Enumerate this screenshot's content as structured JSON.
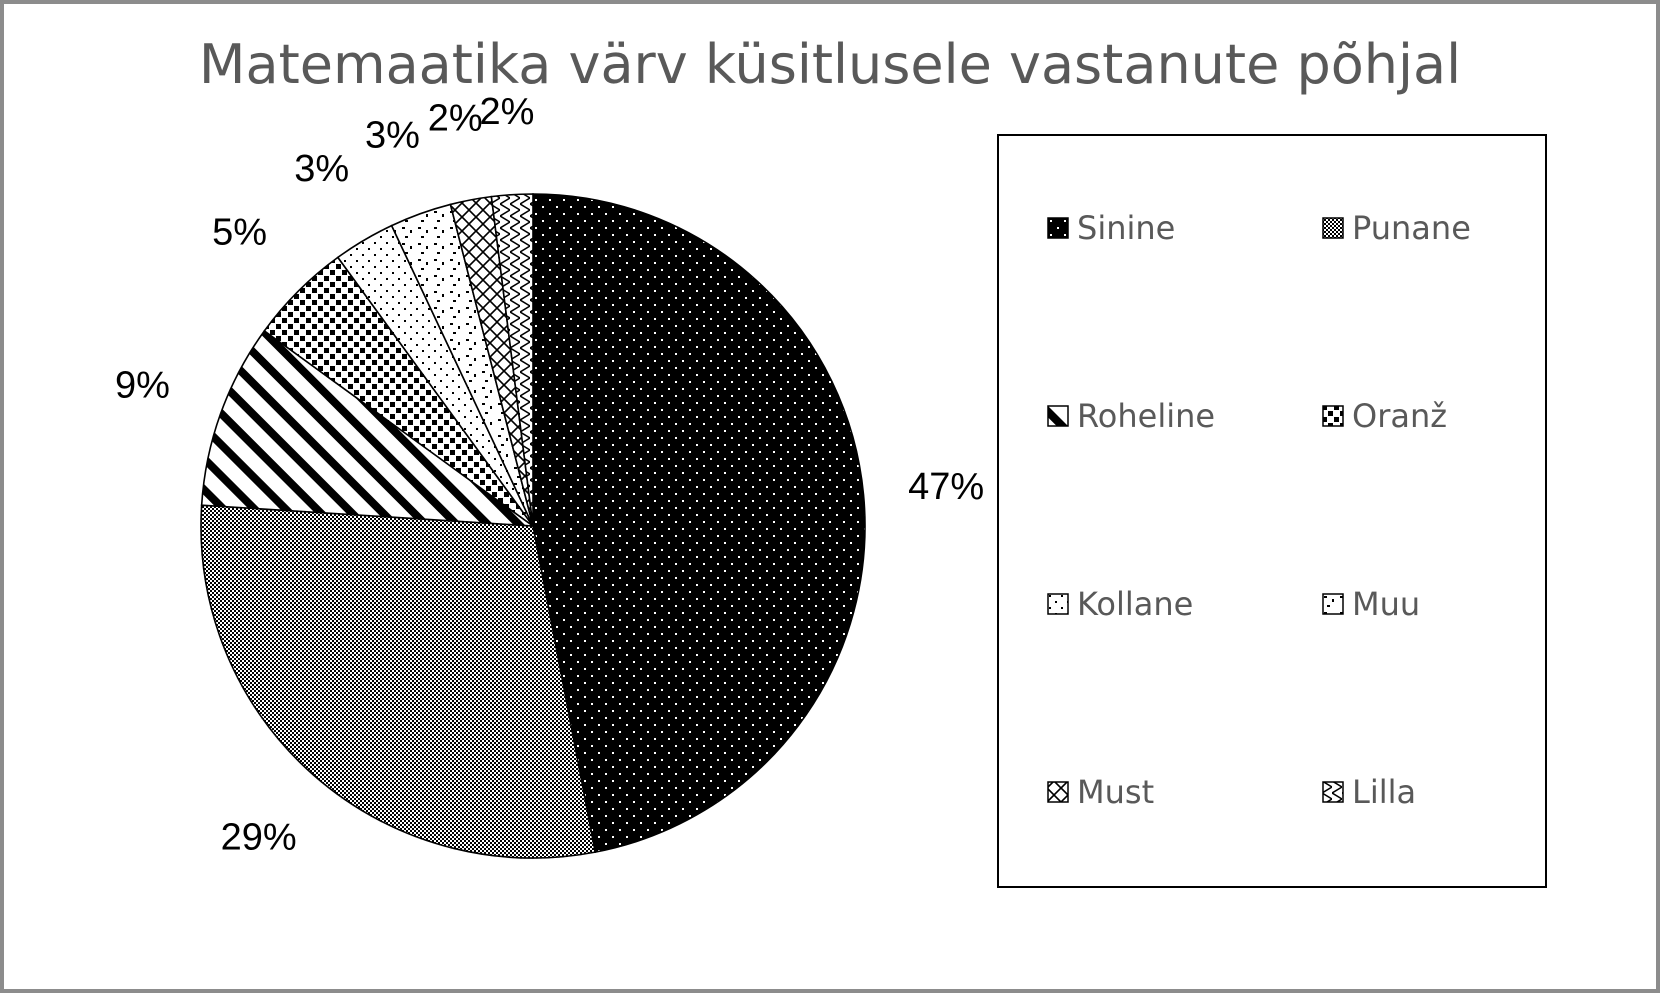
{
  "chart_data": {
    "type": "pie",
    "title": "Matemaatika värv küsitlusele vastanute põhjal",
    "start_angle_deg": 0,
    "direction": "clockwise",
    "legend_position": "right",
    "slices": [
      {
        "label": "Sinine",
        "value": 47,
        "display": "47%",
        "pattern": "dots-on-black"
      },
      {
        "label": "Punane",
        "value": 29,
        "display": "29%",
        "pattern": "fine-checker"
      },
      {
        "label": "Roheline",
        "value": 9,
        "display": "9%",
        "pattern": "wide-diagonal-stripes"
      },
      {
        "label": "Oranž",
        "value": 5,
        "display": "5%",
        "pattern": "small-squares"
      },
      {
        "label": "Kollane",
        "value": 3,
        "display": "3%",
        "pattern": "sparse-dots"
      },
      {
        "label": "Muu",
        "value": 3,
        "display": "3%",
        "pattern": "scattered-dashes"
      },
      {
        "label": "Must",
        "value": 2,
        "display": "2%",
        "pattern": "diamond-lattice"
      },
      {
        "label": "Lilla",
        "value": 2,
        "display": "2%",
        "pattern": "zigzag"
      }
    ],
    "colors": {
      "fill": "#000000",
      "background": "#ffffff",
      "title": "#595959",
      "legend_text": "#595959",
      "frame": "#8c8c8c"
    }
  }
}
